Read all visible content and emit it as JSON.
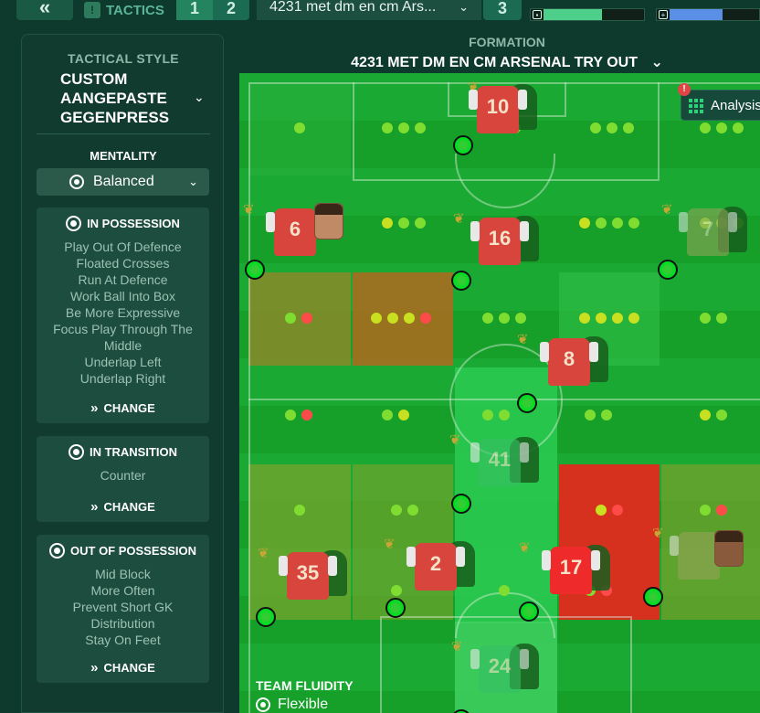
{
  "topbar": {
    "back_glyph": "«",
    "tactics_label": "TACTICS",
    "slot_1": "1",
    "slot_2": "2",
    "slot_3": "3",
    "tactic_name": "4231 met dm en cm Ars...",
    "tactic_chevron": "⌄"
  },
  "colors": {
    "familiarity_fill": "#4fd08a",
    "intensity_fill": "#5a8fe6"
  },
  "left_panel": {
    "style_label": "TACTICAL STYLE",
    "style_name_line1": "CUSTOM",
    "style_name_line2": "AANGEPASTE",
    "style_name_line3": "GEGENPRESS",
    "mentality_label": "MENTALITY",
    "mentality_value": "Balanced",
    "in_possession": {
      "title": "IN POSSESSION",
      "items": [
        "Play Out Of Defence",
        "Floated Crosses",
        "Run At Defence",
        "Work Ball Into Box",
        "Be More Expressive",
        "Focus Play Through The",
        "Middle",
        "Underlap Left",
        "Underlap Right"
      ],
      "change": "CHANGE"
    },
    "in_transition": {
      "title": "IN TRANSITION",
      "items": [
        "Counter"
      ],
      "change": "CHANGE"
    },
    "out_of_possession": {
      "title": "OUT OF POSSESSION",
      "items": [
        "Mid Block",
        "More Often",
        "Prevent Short GK",
        "Distribution",
        "Stay On Feet"
      ],
      "change": "CHANGE"
    }
  },
  "formation": {
    "label": "FORMATION",
    "name": "4231 MET DM EN CM ARSENAL TRY OUT",
    "chevron": "⌄"
  },
  "analysis": {
    "label": "Analysis",
    "alert": "!"
  },
  "players": {
    "p10": "10",
    "p6": "6",
    "p16": "16",
    "p7": "7",
    "p8": "8",
    "p41": "41",
    "p35": "35",
    "p2": "2",
    "p17": "17",
    "p24": "24"
  },
  "fluidity": {
    "label": "TEAM FLUIDITY",
    "value": "Flexible"
  }
}
